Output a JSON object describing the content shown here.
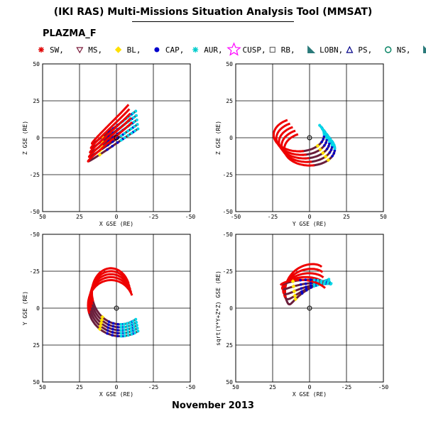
{
  "title": "(IKI RAS) Multi-Missions Situation Analysis Tool (MMSAT)",
  "mission": "PLAZMA_F",
  "date": "November 2013",
  "legend": [
    {
      "label": "SW,",
      "marker": "asterisk",
      "color": "#e00000"
    },
    {
      "label": "MS,",
      "marker": "triangle-down",
      "color": "#7a1a3a"
    },
    {
      "label": "BL,",
      "marker": "diamond",
      "color": "#ffe000"
    },
    {
      "label": "CAP,",
      "marker": "circle-filled",
      "color": "#0000cc"
    },
    {
      "label": "AUR,",
      "marker": "asterisk",
      "color": "#00cccc"
    },
    {
      "label": "CUSP,",
      "marker": "star-open",
      "color": "#ff00ff"
    },
    {
      "label": "RB,",
      "marker": "square-open",
      "color": "#606060"
    },
    {
      "label": "LOBN,",
      "marker": "wedge",
      "color": "#2a7a7a"
    },
    {
      "label": "PS,",
      "marker": "triangle-up",
      "color": "#000088"
    },
    {
      "label": "NS,",
      "marker": "circle-open",
      "color": "#008060"
    },
    {
      "label": "",
      "marker": "wedge",
      "color": "#2a7a7a"
    }
  ],
  "colors": {
    "sw": "#ee0000",
    "ms": "#6a1f3c",
    "bl": "#ffe000",
    "cap": "#0000cc",
    "aur": "#00d8e8",
    "lobn": "#2a7a7a",
    "grid": "#000000"
  },
  "chart_data": [
    {
      "type": "line",
      "xlabel": "X GSE (RE)",
      "ylabel": "Z GSE (RE)",
      "xlim": [
        50,
        -50
      ],
      "ylim": [
        -50,
        50
      ],
      "xticks": [
        50,
        25,
        0,
        -25,
        -50
      ],
      "yticks": [
        50,
        25,
        0,
        -25,
        -50
      ],
      "x_reversed": true,
      "y_reversed": false,
      "grid": true,
      "view": "xz"
    },
    {
      "type": "line",
      "xlabel": "Y GSE (RE)",
      "ylabel": "Z GSE (RE)",
      "xlim": [
        -50,
        50
      ],
      "ylim": [
        -50,
        50
      ],
      "xticks": [
        -50,
        -25,
        0,
        25,
        50
      ],
      "yticks": [
        50,
        25,
        0,
        -25,
        -50
      ],
      "x_reversed": false,
      "y_reversed": false,
      "grid": true,
      "view": "yz"
    },
    {
      "type": "line",
      "xlabel": "X GSE (RE)",
      "ylabel": "Y GSE (RE)",
      "xlim": [
        50,
        -50
      ],
      "ylim": [
        -50,
        50
      ],
      "xticks": [
        50,
        25,
        0,
        -25,
        -50
      ],
      "yticks": [
        -50,
        -25,
        0,
        25,
        50
      ],
      "x_reversed": true,
      "y_reversed": true,
      "grid": true,
      "view": "xy"
    },
    {
      "type": "line",
      "xlabel": "X GSE (RE)",
      "ylabel": "sqrt(Y*Y+Z*Z) GSE (RE)",
      "xlim": [
        50,
        -50
      ],
      "ylim": [
        -50,
        50
      ],
      "xticks": [
        50,
        25,
        0,
        -25,
        -50
      ],
      "yticks": [
        -50,
        -25,
        0,
        25,
        50
      ],
      "x_reversed": true,
      "y_reversed": true,
      "grid": true,
      "view": "xr"
    }
  ]
}
